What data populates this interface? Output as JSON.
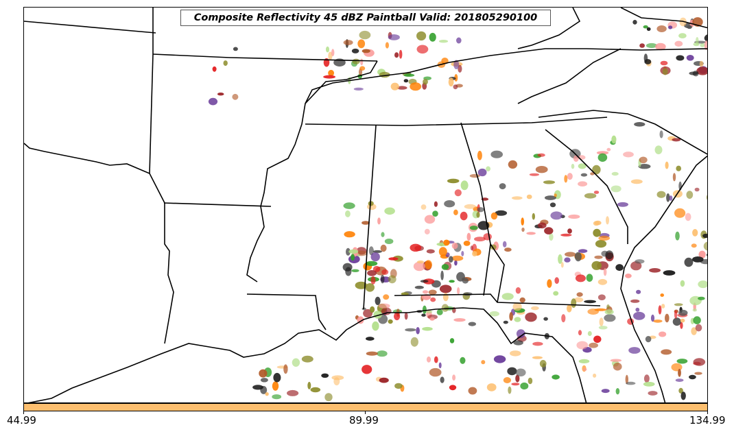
{
  "title": "Composite Reflectivity 45 dBZ Paintball Valid: 201805290100",
  "colorbar": {
    "color": "#fdbf6f",
    "ticks": [
      "44.99",
      "89.99",
      "134.99"
    ]
  },
  "paintball_colors": [
    "#e31a1c",
    "#33a02c",
    "#ff7f00",
    "#1a1a1a",
    "#6a3d9a",
    "#b15928",
    "#8c8c2a",
    "#fb9a99",
    "#9b2226",
    "#555555",
    "#b2df8a",
    "#fdbf6f"
  ]
}
